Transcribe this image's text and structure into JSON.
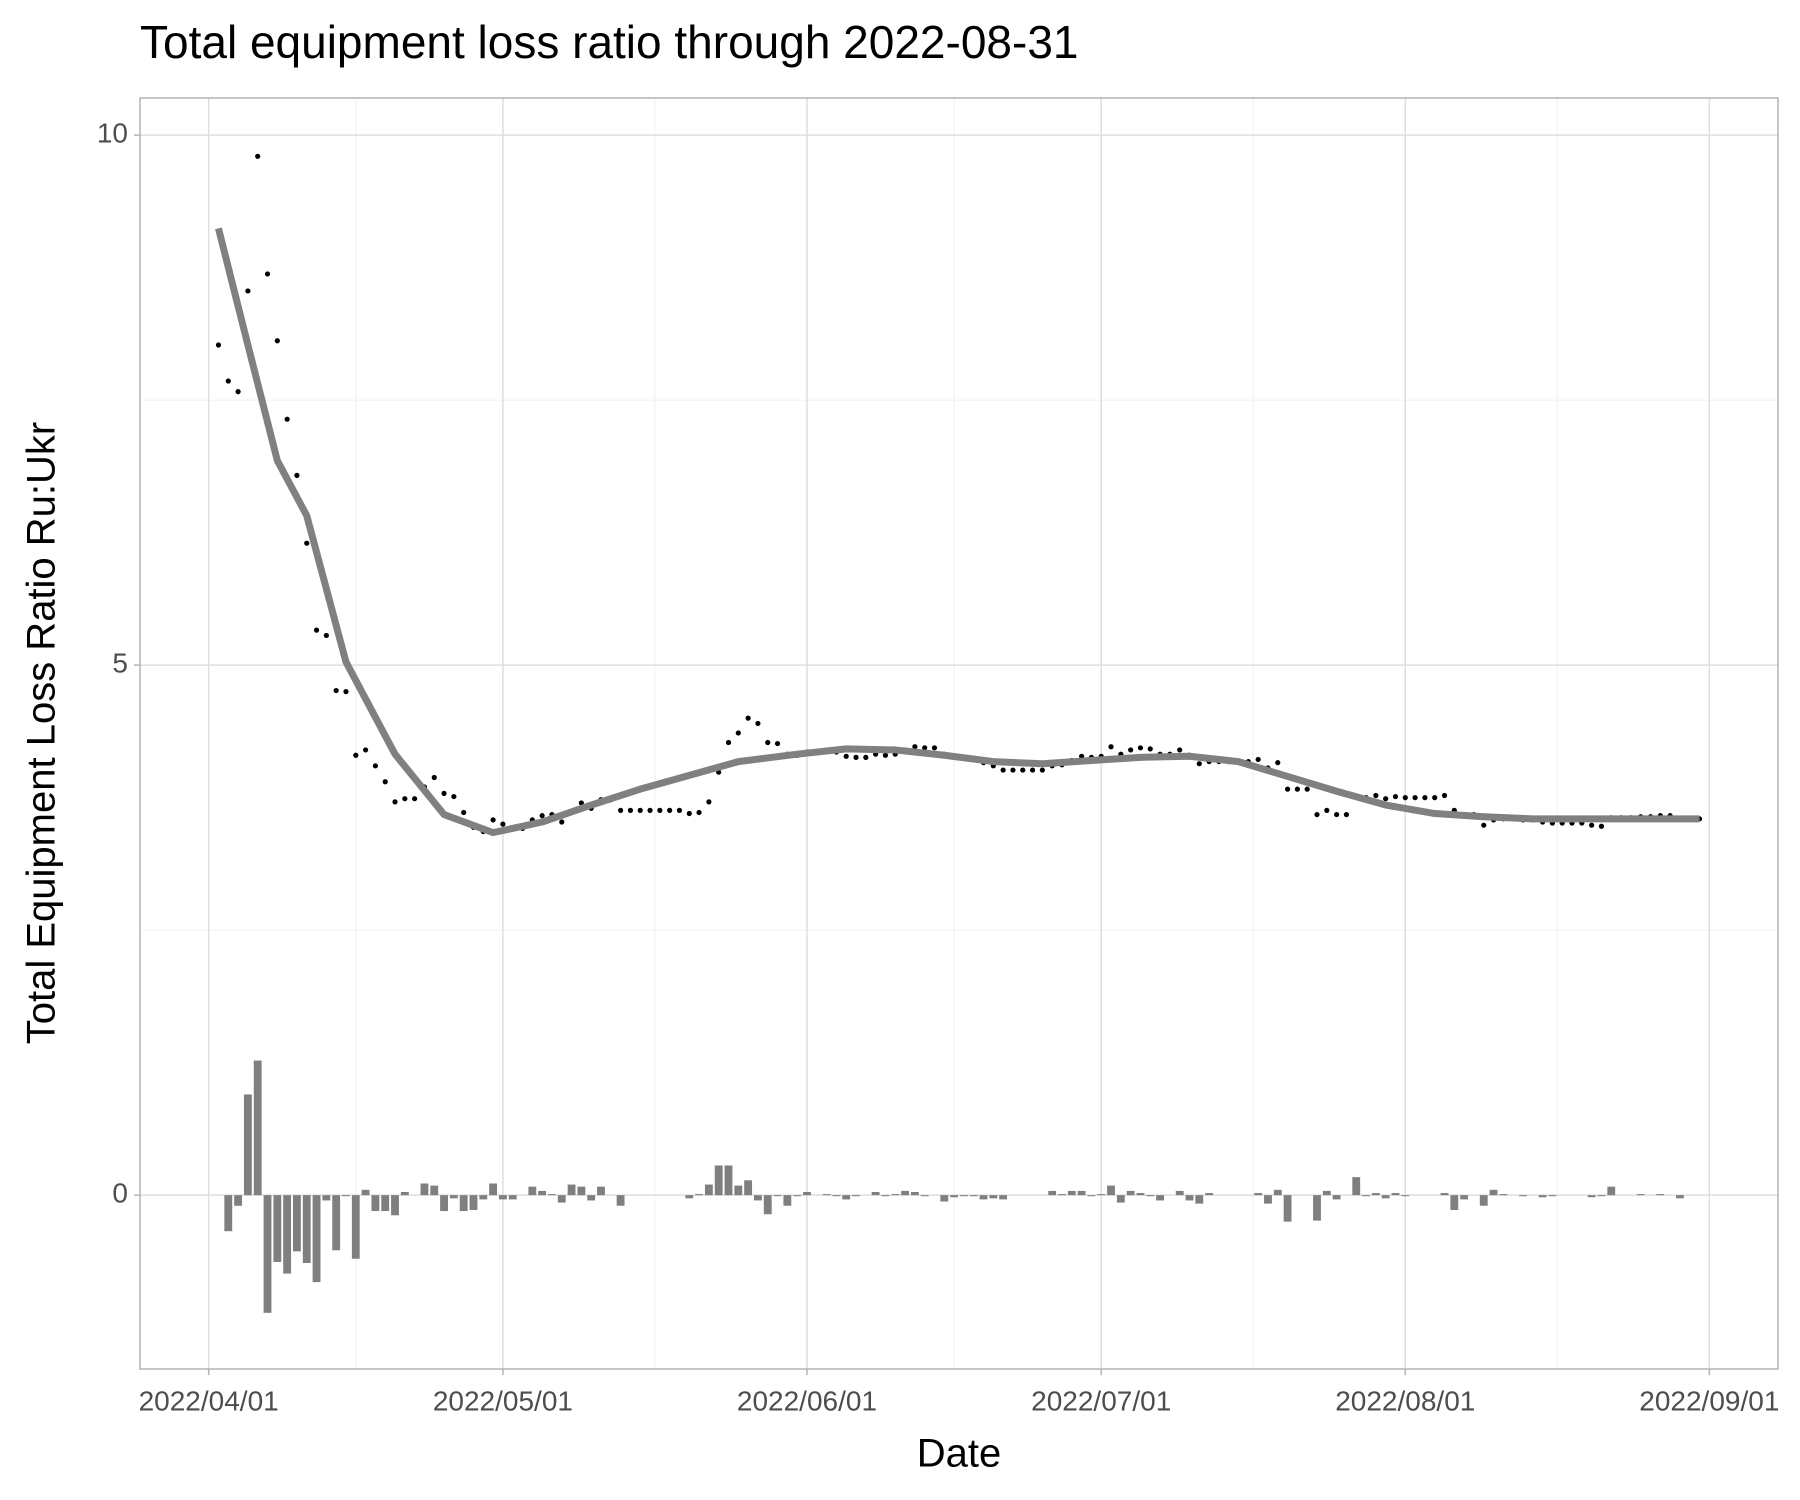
{
  "chart_data": {
    "type": "combo",
    "title": "Total equipment loss ratio through 2022-08-31",
    "x_label": "Date",
    "y_label": "Total Equipment Loss Ratio Ru:Ukr",
    "xlim": [
      "2022/03/25",
      "2022/09/08"
    ],
    "xticks": [
      "2022/04/01",
      "2022/05/01",
      "2022/06/01",
      "2022/07/01",
      "2022/08/01",
      "2022/09/01"
    ],
    "ylim": [
      -1.64,
      10.35
    ],
    "yticks": [
      0,
      5,
      10
    ],
    "grid": true,
    "x": [
      "2022/04/02",
      "2022/04/03",
      "2022/04/04",
      "2022/04/05",
      "2022/04/06",
      "2022/04/07",
      "2022/04/08",
      "2022/04/09",
      "2022/04/10",
      "2022/04/11",
      "2022/04/12",
      "2022/04/13",
      "2022/04/14",
      "2022/04/15",
      "2022/04/16",
      "2022/04/17",
      "2022/04/18",
      "2022/04/19",
      "2022/04/20",
      "2022/04/21",
      "2022/04/22",
      "2022/04/23",
      "2022/04/24",
      "2022/04/25",
      "2022/04/26",
      "2022/04/27",
      "2022/04/28",
      "2022/04/29",
      "2022/04/30",
      "2022/05/01",
      "2022/05/02",
      "2022/05/03",
      "2022/05/04",
      "2022/05/05",
      "2022/05/06",
      "2022/05/07",
      "2022/05/08",
      "2022/05/09",
      "2022/05/10",
      "2022/05/11",
      "2022/05/12",
      "2022/05/13",
      "2022/05/14",
      "2022/05/15",
      "2022/05/16",
      "2022/05/17",
      "2022/05/18",
      "2022/05/19",
      "2022/05/20",
      "2022/05/21",
      "2022/05/22",
      "2022/05/23",
      "2022/05/24",
      "2022/05/25",
      "2022/05/26",
      "2022/05/27",
      "2022/05/28",
      "2022/05/29",
      "2022/05/30",
      "2022/05/31",
      "2022/06/01",
      "2022/06/02",
      "2022/06/03",
      "2022/06/04",
      "2022/06/05",
      "2022/06/06",
      "2022/06/07",
      "2022/06/08",
      "2022/06/09",
      "2022/06/10",
      "2022/06/11",
      "2022/06/12",
      "2022/06/13",
      "2022/06/14",
      "2022/06/15",
      "2022/06/16",
      "2022/06/17",
      "2022/06/18",
      "2022/06/19",
      "2022/06/20",
      "2022/06/21",
      "2022/06/22",
      "2022/06/23",
      "2022/06/24",
      "2022/06/25",
      "2022/06/26",
      "2022/06/27",
      "2022/06/28",
      "2022/06/29",
      "2022/06/30",
      "2022/07/01",
      "2022/07/02",
      "2022/07/03",
      "2022/07/04",
      "2022/07/05",
      "2022/07/06",
      "2022/07/07",
      "2022/07/08",
      "2022/07/09",
      "2022/07/10",
      "2022/07/11",
      "2022/07/12",
      "2022/07/13",
      "2022/07/14",
      "2022/07/15",
      "2022/07/16",
      "2022/07/17",
      "2022/07/18",
      "2022/07/19",
      "2022/07/20",
      "2022/07/21",
      "2022/07/22",
      "2022/07/23",
      "2022/07/24",
      "2022/07/25",
      "2022/07/26",
      "2022/07/27",
      "2022/07/28",
      "2022/07/29",
      "2022/07/30",
      "2022/07/31",
      "2022/08/01",
      "2022/08/02",
      "2022/08/03",
      "2022/08/04",
      "2022/08/05",
      "2022/08/06",
      "2022/08/07",
      "2022/08/08",
      "2022/08/09",
      "2022/08/10",
      "2022/08/11",
      "2022/08/12",
      "2022/08/13",
      "2022/08/14",
      "2022/08/15",
      "2022/08/16",
      "2022/08/17",
      "2022/08/18",
      "2022/08/19",
      "2022/08/20",
      "2022/08/21",
      "2022/08/22",
      "2022/08/23",
      "2022/08/24",
      "2022/08/25",
      "2022/08/26",
      "2022/08/27",
      "2022/08/28",
      "2022/08/29",
      "2022/08/30",
      "2022/08/31"
    ],
    "series": [
      {
        "type": "bar",
        "color": "#7f7f7f",
        "values": [
          null,
          -0.34,
          -0.1,
          0.95,
          1.27,
          -1.11,
          -0.63,
          -0.74,
          -0.53,
          -0.64,
          -0.82,
          -0.05,
          -0.52,
          -0.01,
          -0.6,
          0.05,
          -0.15,
          -0.15,
          -0.19,
          0.03,
          0,
          0.11,
          0.09,
          -0.15,
          -0.03,
          -0.15,
          -0.14,
          -0.04,
          0.11,
          -0.04,
          -0.04,
          0,
          0.08,
          0.04,
          0.01,
          -0.07,
          0.1,
          0.08,
          -0.05,
          0.08,
          0,
          -0.1,
          0,
          0,
          0,
          0,
          0,
          0,
          -0.03,
          0.01,
          0.1,
          0.28,
          0.28,
          0.09,
          0.14,
          -0.05,
          -0.18,
          -0.01,
          -0.1,
          -0.01,
          0.03,
          0,
          0.01,
          -0.01,
          -0.04,
          -0.01,
          0,
          0.03,
          -0.01,
          0.01,
          0.04,
          0.03,
          -0.01,
          0,
          -0.06,
          -0.02,
          -0.01,
          -0.01,
          -0.04,
          -0.03,
          -0.04,
          0,
          0,
          0,
          0,
          0.04,
          0.01,
          0.04,
          0.04,
          -0.01,
          0.01,
          0.09,
          -0.07,
          0.04,
          0.02,
          -0.01,
          -0.05,
          0,
          0.04,
          -0.05,
          -0.08,
          0.02,
          0,
          0,
          0,
          0,
          0.02,
          -0.08,
          0.05,
          -0.25,
          0,
          0,
          -0.24,
          0.04,
          -0.04,
          0,
          0.17,
          -0.01,
          0.02,
          -0.03,
          0.02,
          -0.01,
          0,
          0,
          0,
          0.02,
          -0.14,
          -0.04,
          0,
          -0.1,
          0.05,
          0.01,
          0,
          -0.01,
          0,
          -0.02,
          -0.01,
          0,
          0,
          0,
          -0.02,
          -0.01,
          0.08,
          0,
          0,
          0.01,
          0,
          0.01,
          0,
          -0.03,
          0,
          0
        ]
      },
      {
        "type": "scatter",
        "color": "#000000",
        "values": [
          8.02,
          7.68,
          7.58,
          8.53,
          9.8,
          8.69,
          8.06,
          7.32,
          6.79,
          6.15,
          5.33,
          5.28,
          4.76,
          4.75,
          4.15,
          4.2,
          4.05,
          3.9,
          3.71,
          3.74,
          3.74,
          3.85,
          3.94,
          3.79,
          3.76,
          3.61,
          3.47,
          3.43,
          3.54,
          3.5,
          3.46,
          3.46,
          3.54,
          3.58,
          3.59,
          3.52,
          3.62,
          3.7,
          3.65,
          3.73,
          3.73,
          3.63,
          3.63,
          3.63,
          3.63,
          3.63,
          3.63,
          3.63,
          3.6,
          3.61,
          3.71,
          3.99,
          4.27,
          4.36,
          4.5,
          4.45,
          4.27,
          4.26,
          4.16,
          4.15,
          4.18,
          4.18,
          4.19,
          4.18,
          4.14,
          4.13,
          4.13,
          4.16,
          4.15,
          4.16,
          4.2,
          4.23,
          4.22,
          4.22,
          4.16,
          4.14,
          4.13,
          4.12,
          4.08,
          4.05,
          4.01,
          4.01,
          4.01,
          4.01,
          4.01,
          4.05,
          4.06,
          4.1,
          4.14,
          4.13,
          4.14,
          4.23,
          4.16,
          4.2,
          4.22,
          4.21,
          4.16,
          4.16,
          4.2,
          4.15,
          4.07,
          4.09,
          4.09,
          4.09,
          4.09,
          4.09,
          4.11,
          4.03,
          4.08,
          3.83,
          3.83,
          3.83,
          3.59,
          3.63,
          3.59,
          3.59,
          3.76,
          3.75,
          3.77,
          3.74,
          3.76,
          3.75,
          3.75,
          3.75,
          3.75,
          3.77,
          3.63,
          3.59,
          3.59,
          3.49,
          3.54,
          3.55,
          3.55,
          3.54,
          3.54,
          3.52,
          3.51,
          3.51,
          3.51,
          3.51,
          3.49,
          3.48,
          3.56,
          3.56,
          3.56,
          3.57,
          3.57,
          3.58,
          3.58,
          3.55,
          3.55,
          3.55
        ]
      },
      {
        "type": "line",
        "color": "#808080",
        "x": [
          "2022/04/02",
          "2022/04/05",
          "2022/04/08",
          "2022/04/11",
          "2022/04/15",
          "2022/04/20",
          "2022/04/25",
          "2022/04/30",
          "2022/05/05",
          "2022/05/10",
          "2022/05/15",
          "2022/05/20",
          "2022/05/25",
          "2022/05/31",
          "2022/06/05",
          "2022/06/10",
          "2022/06/15",
          "2022/06/20",
          "2022/06/25",
          "2022/06/30",
          "2022/07/05",
          "2022/07/10",
          "2022/07/15",
          "2022/07/20",
          "2022/07/25",
          "2022/07/30",
          "2022/08/04",
          "2022/08/09",
          "2022/08/14",
          "2022/08/19",
          "2022/08/24",
          "2022/08/31"
        ],
        "values": [
          9.12,
          8.02,
          6.93,
          6.41,
          5.03,
          4.16,
          3.59,
          3.42,
          3.52,
          3.68,
          3.83,
          3.96,
          4.09,
          4.16,
          4.21,
          4.2,
          4.15,
          4.09,
          4.07,
          4.1,
          4.13,
          4.14,
          4.09,
          3.95,
          3.81,
          3.68,
          3.6,
          3.57,
          3.55,
          3.55,
          3.55,
          3.55
        ]
      }
    ]
  }
}
